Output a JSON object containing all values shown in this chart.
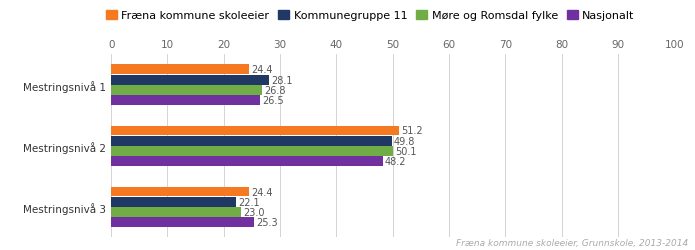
{
  "categories": [
    "Mestringsnivå 1",
    "Mestringsnivå 2",
    "Mestringsnivå 3"
  ],
  "series": [
    {
      "label": "Fræna kommune skoleeier",
      "color": "#F47920",
      "values": [
        24.4,
        51.2,
        24.4
      ]
    },
    {
      "label": "Kommunegruppe 11",
      "color": "#1F3864",
      "values": [
        28.1,
        49.8,
        22.1
      ]
    },
    {
      "label": "Møre og Romsdal fylke",
      "color": "#70AD47",
      "values": [
        26.8,
        50.1,
        23.0
      ]
    },
    {
      "label": "Nasjonalt",
      "color": "#7030A0",
      "values": [
        26.5,
        48.2,
        25.3
      ]
    }
  ],
  "xlim": [
    0,
    100
  ],
  "xticks": [
    0,
    10,
    20,
    30,
    40,
    50,
    60,
    70,
    80,
    90,
    100
  ],
  "bar_height": 0.16,
  "footnote": "Fræna kommune skoleeier, Grunnskole, 2013-2014",
  "background_color": "#ffffff",
  "label_fontsize": 7.0,
  "tick_fontsize": 7.5,
  "legend_fontsize": 8.0
}
